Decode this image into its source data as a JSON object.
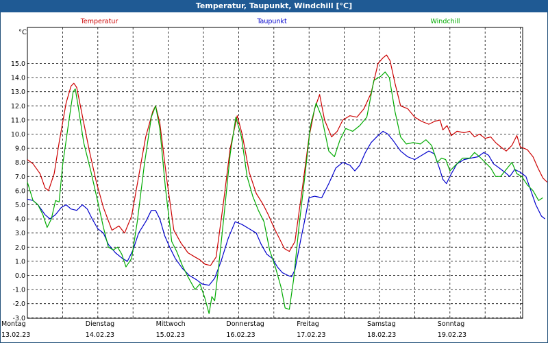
{
  "window": {
    "title": "Temperatur, Taupunkt, Windchill [°C]"
  },
  "chart_data": {
    "type": "line",
    "title": "Temperatur, Taupunkt, Windchill [°C]",
    "ylabel": "°C",
    "ylim": [
      -3.8,
      16.8
    ],
    "yticks": [
      -3.0,
      -2.0,
      -1.0,
      0.0,
      1.0,
      2.0,
      3.0,
      4.0,
      5.0,
      6.0,
      7.0,
      8.0,
      9.0,
      10.0,
      11.0,
      12.0,
      13.0,
      14.0,
      15.0
    ],
    "ytick_labels": [
      "-3.0",
      "-2.0",
      "-1.0",
      "0.0",
      "1.0",
      "2.0",
      "3.0",
      "4.0",
      "5.0",
      "6.0",
      "7.0",
      "8.0",
      "9.0",
      "10.0",
      "11.0",
      "12.0",
      "13.0",
      "14.0",
      "15.0"
    ],
    "xlim_days": [
      0,
      7.05
    ],
    "x_ticks": [
      {
        "day": "Montag",
        "date": "13.02.23",
        "x": 0
      },
      {
        "day": "Dienstag",
        "date": "14.02.23",
        "x": 1
      },
      {
        "day": "Mittwoch",
        "date": "15.02.23",
        "x": 2
      },
      {
        "day": "Donnerstag",
        "date": "16.02.23",
        "x": 3
      },
      {
        "day": "Freitag",
        "date": "17.02.23",
        "x": 4
      },
      {
        "day": "Samstag",
        "date": "18.02.23",
        "x": 5
      },
      {
        "day": "Sonntag",
        "date": "19.02.23",
        "x": 6
      }
    ],
    "grid": true,
    "series": [
      {
        "name": "Temperatur",
        "color": "#cc0000",
        "points": [
          [
            0.0,
            8.2
          ],
          [
            0.08,
            7.9
          ],
          [
            0.18,
            7.2
          ],
          [
            0.25,
            6.2
          ],
          [
            0.3,
            6.0
          ],
          [
            0.38,
            7.2
          ],
          [
            0.45,
            9.4
          ],
          [
            0.55,
            12.2
          ],
          [
            0.62,
            13.4
          ],
          [
            0.66,
            13.6
          ],
          [
            0.7,
            13.3
          ],
          [
            0.78,
            11.3
          ],
          [
            0.88,
            8.8
          ],
          [
            0.98,
            6.6
          ],
          [
            1.08,
            4.8
          ],
          [
            1.2,
            3.2
          ],
          [
            1.3,
            3.5
          ],
          [
            1.38,
            3.0
          ],
          [
            1.48,
            4.2
          ],
          [
            1.58,
            7.0
          ],
          [
            1.68,
            9.8
          ],
          [
            1.78,
            11.6
          ],
          [
            1.82,
            12.0
          ],
          [
            1.88,
            10.8
          ],
          [
            1.98,
            6.8
          ],
          [
            2.08,
            3.2
          ],
          [
            2.18,
            2.3
          ],
          [
            2.28,
            1.6
          ],
          [
            2.38,
            1.3
          ],
          [
            2.45,
            1.1
          ],
          [
            2.52,
            0.8
          ],
          [
            2.6,
            0.7
          ],
          [
            2.68,
            1.3
          ],
          [
            2.78,
            5.0
          ],
          [
            2.88,
            9.0
          ],
          [
            2.98,
            11.3
          ],
          [
            3.05,
            10.0
          ],
          [
            3.15,
            7.3
          ],
          [
            3.25,
            5.8
          ],
          [
            3.35,
            5.0
          ],
          [
            3.42,
            4.3
          ],
          [
            3.5,
            3.4
          ],
          [
            3.58,
            2.6
          ],
          [
            3.65,
            1.9
          ],
          [
            3.72,
            1.7
          ],
          [
            3.8,
            2.4
          ],
          [
            3.9,
            6.0
          ],
          [
            4.0,
            9.8
          ],
          [
            4.08,
            11.8
          ],
          [
            4.15,
            12.8
          ],
          [
            4.22,
            11.0
          ],
          [
            4.32,
            9.8
          ],
          [
            4.4,
            10.2
          ],
          [
            4.48,
            11.0
          ],
          [
            4.58,
            11.3
          ],
          [
            4.68,
            11.2
          ],
          [
            4.78,
            11.8
          ],
          [
            4.88,
            12.9
          ],
          [
            4.98,
            15.0
          ],
          [
            5.05,
            15.4
          ],
          [
            5.1,
            15.6
          ],
          [
            5.15,
            15.2
          ],
          [
            5.22,
            13.6
          ],
          [
            5.3,
            12.0
          ],
          [
            5.4,
            11.8
          ],
          [
            5.5,
            11.2
          ],
          [
            5.6,
            10.9
          ],
          [
            5.7,
            10.7
          ],
          [
            5.78,
            10.9
          ],
          [
            5.86,
            11.0
          ],
          [
            5.9,
            10.3
          ],
          [
            5.96,
            10.6
          ],
          [
            6.02,
            9.9
          ],
          [
            6.1,
            10.2
          ],
          [
            6.2,
            10.1
          ],
          [
            6.28,
            10.2
          ],
          [
            6.35,
            9.8
          ],
          [
            6.42,
            10.0
          ],
          [
            6.5,
            9.7
          ],
          [
            6.58,
            9.8
          ],
          [
            6.65,
            9.4
          ],
          [
            6.72,
            9.1
          ],
          [
            6.8,
            8.8
          ],
          [
            6.88,
            9.2
          ],
          [
            6.95,
            9.9
          ],
          [
            7.0,
            9.1
          ],
          [
            7.1,
            8.9
          ],
          [
            7.18,
            8.4
          ],
          [
            7.25,
            7.6
          ],
          [
            7.32,
            6.9
          ],
          [
            7.38,
            6.6
          ]
        ]
      },
      {
        "name": "Taupunkt",
        "color": "#0000cc",
        "points": [
          [
            0.0,
            5.4
          ],
          [
            0.08,
            5.3
          ],
          [
            0.15,
            5.0
          ],
          [
            0.25,
            4.3
          ],
          [
            0.32,
            4.0
          ],
          [
            0.4,
            4.3
          ],
          [
            0.48,
            4.8
          ],
          [
            0.55,
            5.0
          ],
          [
            0.62,
            4.7
          ],
          [
            0.7,
            4.6
          ],
          [
            0.78,
            5.0
          ],
          [
            0.85,
            4.7
          ],
          [
            0.92,
            4.0
          ],
          [
            1.0,
            3.3
          ],
          [
            1.08,
            3.0
          ],
          [
            1.15,
            2.2
          ],
          [
            1.25,
            1.6
          ],
          [
            1.35,
            1.2
          ],
          [
            1.42,
            1.0
          ],
          [
            1.5,
            1.8
          ],
          [
            1.58,
            3.0
          ],
          [
            1.68,
            3.8
          ],
          [
            1.76,
            4.6
          ],
          [
            1.82,
            4.6
          ],
          [
            1.88,
            4.0
          ],
          [
            1.95,
            2.8
          ],
          [
            2.02,
            2.0
          ],
          [
            2.1,
            1.2
          ],
          [
            2.2,
            0.5
          ],
          [
            2.3,
            0.0
          ],
          [
            2.4,
            -0.3
          ],
          [
            2.48,
            -0.6
          ],
          [
            2.58,
            -0.7
          ],
          [
            2.66,
            -0.2
          ],
          [
            2.75,
            1.0
          ],
          [
            2.85,
            2.6
          ],
          [
            2.95,
            3.8
          ],
          [
            3.05,
            3.6
          ],
          [
            3.15,
            3.3
          ],
          [
            3.25,
            3.0
          ],
          [
            3.32,
            2.2
          ],
          [
            3.4,
            1.5
          ],
          [
            3.48,
            1.2
          ],
          [
            3.55,
            0.6
          ],
          [
            3.62,
            0.2
          ],
          [
            3.7,
            0.0
          ],
          [
            3.75,
            -0.1
          ],
          [
            3.8,
            0.4
          ],
          [
            3.88,
            2.5
          ],
          [
            3.95,
            4.2
          ],
          [
            4.0,
            5.5
          ],
          [
            4.08,
            5.6
          ],
          [
            4.18,
            5.5
          ],
          [
            4.28,
            6.5
          ],
          [
            4.38,
            7.6
          ],
          [
            4.48,
            8.0
          ],
          [
            4.58,
            7.8
          ],
          [
            4.65,
            7.4
          ],
          [
            4.72,
            7.8
          ],
          [
            4.8,
            8.7
          ],
          [
            4.88,
            9.4
          ],
          [
            4.98,
            9.9
          ],
          [
            5.05,
            10.2
          ],
          [
            5.12,
            10.0
          ],
          [
            5.2,
            9.5
          ],
          [
            5.3,
            8.8
          ],
          [
            5.4,
            8.4
          ],
          [
            5.5,
            8.2
          ],
          [
            5.6,
            8.5
          ],
          [
            5.7,
            8.8
          ],
          [
            5.78,
            8.6
          ],
          [
            5.85,
            7.6
          ],
          [
            5.9,
            6.8
          ],
          [
            5.95,
            6.5
          ],
          [
            6.02,
            7.2
          ],
          [
            6.1,
            7.9
          ],
          [
            6.2,
            8.2
          ],
          [
            6.3,
            8.3
          ],
          [
            6.4,
            8.4
          ],
          [
            6.48,
            8.7
          ],
          [
            6.55,
            8.5
          ],
          [
            6.62,
            7.9
          ],
          [
            6.7,
            7.6
          ],
          [
            6.78,
            7.3
          ],
          [
            6.85,
            7.0
          ],
          [
            6.92,
            7.5
          ],
          [
            7.0,
            7.3
          ],
          [
            7.08,
            7.0
          ],
          [
            7.15,
            6.0
          ],
          [
            7.22,
            5.0
          ],
          [
            7.3,
            4.2
          ],
          [
            7.35,
            4.0
          ]
        ]
      },
      {
        "name": "Windchill",
        "color": "#00aa00",
        "points": [
          [
            0.0,
            6.6
          ],
          [
            0.08,
            5.3
          ],
          [
            0.15,
            5.0
          ],
          [
            0.22,
            4.3
          ],
          [
            0.28,
            3.4
          ],
          [
            0.34,
            4.0
          ],
          [
            0.4,
            5.3
          ],
          [
            0.45,
            5.2
          ],
          [
            0.5,
            7.8
          ],
          [
            0.58,
            10.6
          ],
          [
            0.65,
            13.0
          ],
          [
            0.68,
            13.2
          ],
          [
            0.72,
            12.0
          ],
          [
            0.8,
            9.4
          ],
          [
            0.9,
            7.4
          ],
          [
            1.0,
            5.2
          ],
          [
            1.08,
            3.4
          ],
          [
            1.15,
            2.0
          ],
          [
            1.22,
            1.8
          ],
          [
            1.28,
            2.0
          ],
          [
            1.34,
            1.5
          ],
          [
            1.4,
            0.6
          ],
          [
            1.48,
            1.2
          ],
          [
            1.56,
            3.8
          ],
          [
            1.66,
            7.8
          ],
          [
            1.76,
            11.2
          ],
          [
            1.82,
            12.0
          ],
          [
            1.88,
            10.4
          ],
          [
            1.96,
            6.2
          ],
          [
            2.05,
            2.4
          ],
          [
            2.12,
            1.7
          ],
          [
            2.2,
            0.7
          ],
          [
            2.28,
            -0.1
          ],
          [
            2.38,
            -1.0
          ],
          [
            2.45,
            -0.6
          ],
          [
            2.52,
            -1.6
          ],
          [
            2.58,
            -2.7
          ],
          [
            2.62,
            -1.5
          ],
          [
            2.66,
            -1.8
          ],
          [
            2.72,
            0.8
          ],
          [
            2.8,
            4.6
          ],
          [
            2.88,
            8.6
          ],
          [
            2.96,
            11.2
          ],
          [
            3.04,
            9.8
          ],
          [
            3.12,
            7.0
          ],
          [
            3.2,
            5.6
          ],
          [
            3.28,
            4.6
          ],
          [
            3.36,
            3.8
          ],
          [
            3.44,
            1.8
          ],
          [
            3.52,
            0.6
          ],
          [
            3.6,
            -0.8
          ],
          [
            3.66,
            -2.3
          ],
          [
            3.72,
            -2.4
          ],
          [
            3.78,
            -0.3
          ],
          [
            3.86,
            3.6
          ],
          [
            3.94,
            7.0
          ],
          [
            4.02,
            10.6
          ],
          [
            4.1,
            12.2
          ],
          [
            4.18,
            11.2
          ],
          [
            4.28,
            8.8
          ],
          [
            4.36,
            8.4
          ],
          [
            4.44,
            9.6
          ],
          [
            4.52,
            10.4
          ],
          [
            4.62,
            10.2
          ],
          [
            4.72,
            10.6
          ],
          [
            4.82,
            11.2
          ],
          [
            4.92,
            13.8
          ],
          [
            5.02,
            14.1
          ],
          [
            5.08,
            14.4
          ],
          [
            5.14,
            14.0
          ],
          [
            5.22,
            11.6
          ],
          [
            5.3,
            9.8
          ],
          [
            5.38,
            9.3
          ],
          [
            5.48,
            9.4
          ],
          [
            5.58,
            9.3
          ],
          [
            5.66,
            9.6
          ],
          [
            5.74,
            9.2
          ],
          [
            5.82,
            8.0
          ],
          [
            5.88,
            8.3
          ],
          [
            5.94,
            8.2
          ],
          [
            6.0,
            7.4
          ],
          [
            6.08,
            7.8
          ],
          [
            6.18,
            8.3
          ],
          [
            6.28,
            8.3
          ],
          [
            6.35,
            8.7
          ],
          [
            6.42,
            8.4
          ],
          [
            6.5,
            8.0
          ],
          [
            6.58,
            7.6
          ],
          [
            6.65,
            7.0
          ],
          [
            6.72,
            7.0
          ],
          [
            6.8,
            7.5
          ],
          [
            6.88,
            8.0
          ],
          [
            6.95,
            7.2
          ],
          [
            7.02,
            7.0
          ],
          [
            7.1,
            6.4
          ],
          [
            7.18,
            6.0
          ],
          [
            7.26,
            5.3
          ],
          [
            7.32,
            5.5
          ]
        ]
      }
    ]
  }
}
